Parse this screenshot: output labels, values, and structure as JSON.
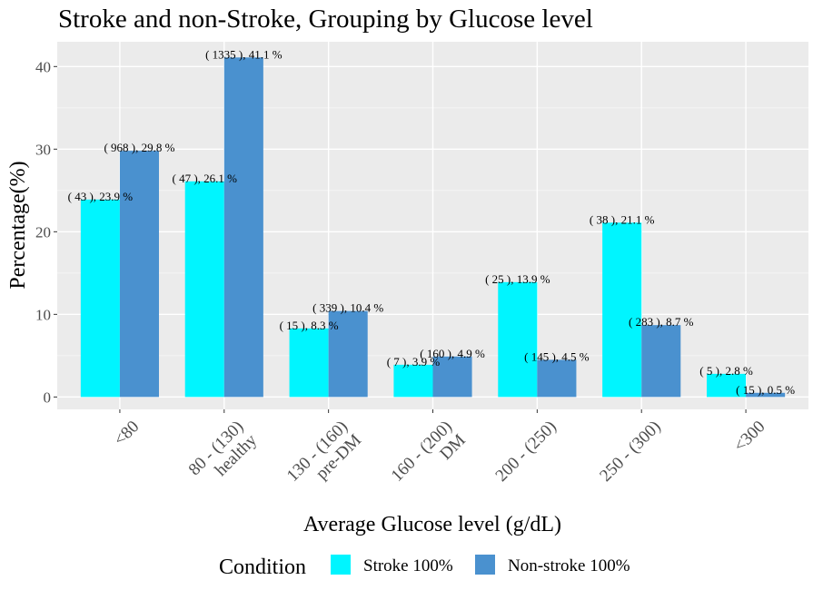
{
  "chart_data": {
    "type": "bar",
    "title": "Stroke and non-Stroke, Grouping by Glucose level",
    "xlabel": "Average Glucose level (g/dL)",
    "ylabel": "Percentage(%)",
    "ylim": [
      -1.5,
      43
    ],
    "yticks": [
      0,
      10,
      20,
      30,
      40
    ],
    "grid": true,
    "categories": [
      [
        "<80"
      ],
      [
        "80 - (130)",
        "healthy"
      ],
      [
        "130 - (160)",
        "pre-DM"
      ],
      [
        "160 - (200)",
        "DM"
      ],
      [
        "200 - (250)"
      ],
      [
        "250 - (300)"
      ],
      [
        "<300"
      ]
    ],
    "series": [
      {
        "name": "Stroke 100%",
        "color": "#00f5ff",
        "values": [
          23.9,
          26.1,
          8.3,
          3.9,
          13.9,
          21.1,
          2.8
        ],
        "labels": [
          "( 43 ), 23.9 %",
          "( 47 ), 26.1 %",
          "( 15 ), 8.3 %",
          "( 7 ), 3.9 %",
          "( 25 ), 13.9 %",
          "( 38 ), 21.1 %",
          "( 5 ), 2.8 %"
        ]
      },
      {
        "name": "Non-stroke 100%",
        "color": "#4a91cf",
        "values": [
          29.8,
          41.1,
          10.4,
          4.9,
          4.5,
          8.7,
          0.5
        ],
        "labels": [
          "( 968 ), 29.8 %",
          "( 1335 ), 41.1 %",
          "( 339 ), 10.4 %",
          "( 160 ), 4.9 %",
          "( 145 ), 4.5 %",
          "( 283 ), 8.7 %",
          "( 15 ), 0.5 %"
        ]
      }
    ],
    "legend": {
      "title": "Condition",
      "position": "bottom"
    }
  }
}
